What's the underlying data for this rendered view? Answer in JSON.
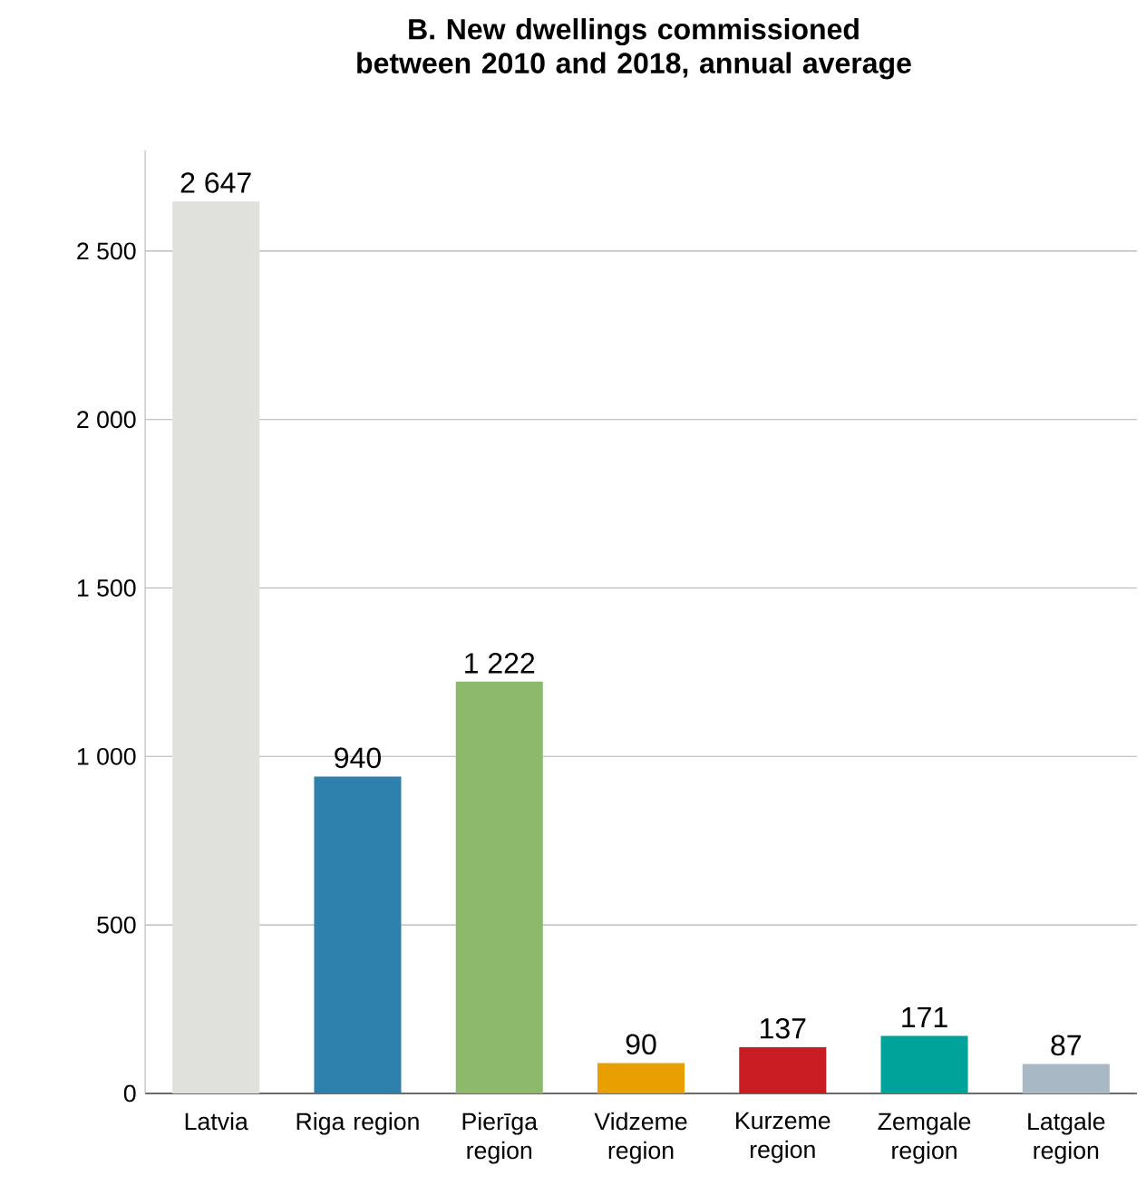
{
  "chart_data": {
    "type": "bar",
    "title": "B. New dwellings commissioned between 2010 and 2018, annual average",
    "categories": [
      "Latvia",
      "Riga region",
      "Pierīga region",
      "Vidzeme region",
      "Kurzeme region",
      "Zemgale region",
      "Latgale region"
    ],
    "values": [
      2647,
      940,
      1222,
      90,
      137,
      171,
      87
    ],
    "colors": [
      "#e0e1dc",
      "#2e80ad",
      "#8db96a",
      "#e8a000",
      "#c81e23",
      "#00a39a",
      "#a8b8c4"
    ],
    "value_labels": [
      "2 647",
      "940",
      "1 222",
      "90",
      "137",
      "171",
      "87"
    ],
    "ylim": [
      0,
      2800
    ],
    "yticks": [
      0,
      {
        "value": 500,
        "label": "500"
      },
      {
        "value": 1000,
        "label": "1 000"
      },
      {
        "value": 1500,
        "label": "1 500"
      },
      {
        "value": 2000,
        "label": "2 000"
      },
      {
        "value": 2500,
        "label": "2 500"
      }
    ],
    "grid": "y"
  }
}
